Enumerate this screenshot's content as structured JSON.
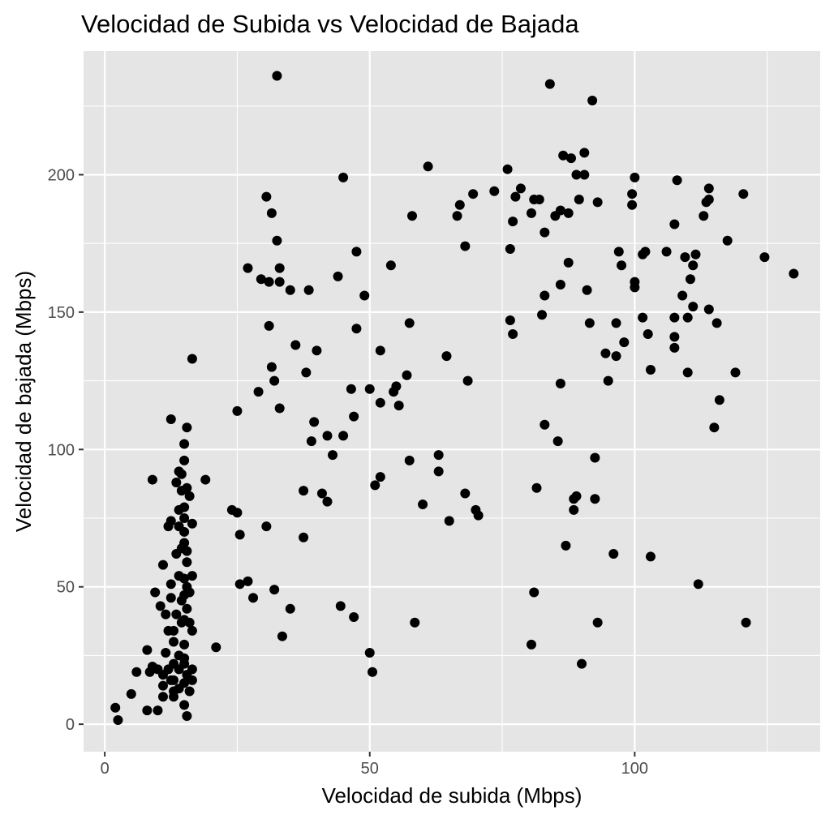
{
  "chart_data": {
    "type": "scatter",
    "title": "Velocidad de Subida vs Velocidad de Bajada",
    "xlabel": "Velocidad de subida (Mbps)",
    "ylabel": "Velocidad de bajada (Mbps)",
    "xlim": [
      -4,
      135
    ],
    "ylim": [
      -10,
      245
    ],
    "x_ticks": [
      0,
      50,
      100
    ],
    "y_ticks": [
      0,
      50,
      100,
      150,
      200
    ],
    "x_tick_labels": [
      "0",
      "50",
      "100"
    ],
    "y_tick_labels": [
      "0",
      "50",
      "100",
      "150",
      "200"
    ],
    "grid": true,
    "legend": "none",
    "colors": {
      "panel": "#e5e5e5",
      "point": "#000000"
    },
    "points": [
      [
        2,
        6
      ],
      [
        2.5,
        1.5
      ],
      [
        5,
        11
      ],
      [
        6,
        19
      ],
      [
        8,
        5
      ],
      [
        8,
        27
      ],
      [
        8.5,
        19
      ],
      [
        9,
        21
      ],
      [
        9,
        89
      ],
      [
        9.5,
        48
      ],
      [
        10,
        5
      ],
      [
        10,
        20
      ],
      [
        10.5,
        43
      ],
      [
        11,
        10
      ],
      [
        11,
        14
      ],
      [
        11,
        18
      ],
      [
        11,
        58
      ],
      [
        11.5,
        40
      ],
      [
        12,
        72
      ],
      [
        12,
        34
      ],
      [
        12.5,
        46
      ],
      [
        12.5,
        51
      ],
      [
        12.5,
        74
      ],
      [
        12.5,
        111
      ],
      [
        13,
        12
      ],
      [
        13,
        16
      ],
      [
        13,
        22
      ],
      [
        13,
        30
      ],
      [
        13,
        34
      ],
      [
        13.5,
        40
      ],
      [
        13.5,
        62
      ],
      [
        13.5,
        88
      ],
      [
        14,
        72
      ],
      [
        14,
        78
      ],
      [
        14,
        92
      ],
      [
        14,
        54
      ],
      [
        14,
        13
      ],
      [
        14,
        20
      ],
      [
        14.5,
        37
      ],
      [
        14.5,
        45
      ],
      [
        14.5,
        64
      ],
      [
        14.5,
        85
      ],
      [
        14.5,
        91
      ],
      [
        15,
        7
      ],
      [
        15,
        15
      ],
      [
        15,
        22
      ],
      [
        15,
        24
      ],
      [
        15,
        29
      ],
      [
        15,
        38
      ],
      [
        15,
        47
      ],
      [
        15,
        53
      ],
      [
        15,
        66
      ],
      [
        15,
        70
      ],
      [
        15,
        75
      ],
      [
        15,
        79
      ],
      [
        15,
        96
      ],
      [
        15,
        102
      ],
      [
        15.5,
        3
      ],
      [
        15.5,
        108
      ],
      [
        15.5,
        86
      ],
      [
        15.5,
        63
      ],
      [
        15.5,
        50
      ],
      [
        15.5,
        42
      ],
      [
        15.5,
        18
      ],
      [
        16,
        12
      ],
      [
        16,
        37
      ],
      [
        16,
        48
      ],
      [
        16,
        83
      ],
      [
        16.5,
        133
      ],
      [
        16.5,
        73
      ],
      [
        16.5,
        54
      ],
      [
        16.5,
        34
      ],
      [
        16.5,
        20
      ],
      [
        16.5,
        16
      ],
      [
        12,
        20
      ],
      [
        11.5,
        26
      ],
      [
        12.5,
        16
      ],
      [
        13,
        10
      ],
      [
        14,
        25
      ],
      [
        15.5,
        59
      ],
      [
        19,
        89
      ],
      [
        21,
        28
      ],
      [
        24,
        78
      ],
      [
        25,
        77
      ],
      [
        25,
        114
      ],
      [
        25.5,
        69
      ],
      [
        25.5,
        51
      ],
      [
        27,
        52
      ],
      [
        27,
        166
      ],
      [
        28,
        46
      ],
      [
        29,
        121
      ],
      [
        29.5,
        162
      ],
      [
        30.5,
        192
      ],
      [
        30.5,
        72
      ],
      [
        31,
        161
      ],
      [
        31,
        145
      ],
      [
        31.5,
        186
      ],
      [
        31.5,
        130
      ],
      [
        32,
        125
      ],
      [
        32,
        49
      ],
      [
        32.5,
        176
      ],
      [
        32.5,
        236
      ],
      [
        33,
        166
      ],
      [
        33,
        161
      ],
      [
        33,
        115
      ],
      [
        33.5,
        32
      ],
      [
        35,
        158
      ],
      [
        35,
        42
      ],
      [
        36,
        138
      ],
      [
        37.5,
        85
      ],
      [
        37.5,
        68
      ],
      [
        38,
        128
      ],
      [
        38.5,
        158
      ],
      [
        39,
        103
      ],
      [
        39.5,
        110
      ],
      [
        40,
        136
      ],
      [
        41,
        84
      ],
      [
        42,
        105
      ],
      [
        42,
        81
      ],
      [
        43,
        98
      ],
      [
        44,
        163
      ],
      [
        44.5,
        43
      ],
      [
        45,
        105
      ],
      [
        45,
        199
      ],
      [
        46.5,
        122
      ],
      [
        47,
        112
      ],
      [
        47,
        39
      ],
      [
        47.5,
        172
      ],
      [
        47.5,
        144
      ],
      [
        49,
        156
      ],
      [
        50,
        122
      ],
      [
        50,
        26
      ],
      [
        50.5,
        19
      ],
      [
        51,
        87
      ],
      [
        52,
        136
      ],
      [
        52,
        90
      ],
      [
        52,
        117
      ],
      [
        54,
        167
      ],
      [
        54.5,
        121
      ],
      [
        55,
        123
      ],
      [
        55.5,
        116
      ],
      [
        57,
        127
      ],
      [
        57.5,
        146
      ],
      [
        57.5,
        96
      ],
      [
        58,
        185
      ],
      [
        58.5,
        37
      ],
      [
        60,
        80
      ],
      [
        61,
        203
      ],
      [
        63,
        98
      ],
      [
        63,
        92
      ],
      [
        64.5,
        134
      ],
      [
        65,
        74
      ],
      [
        66.5,
        185
      ],
      [
        67,
        189
      ],
      [
        68,
        174
      ],
      [
        68,
        84
      ],
      [
        68.5,
        125
      ],
      [
        69.5,
        193
      ],
      [
        70,
        78
      ],
      [
        70.5,
        76
      ],
      [
        73.5,
        194
      ],
      [
        76,
        202
      ],
      [
        76.5,
        173
      ],
      [
        76.5,
        147
      ],
      [
        77,
        142
      ],
      [
        77,
        183
      ],
      [
        77.5,
        192
      ],
      [
        78.5,
        195
      ],
      [
        80.5,
        186
      ],
      [
        80.5,
        29
      ],
      [
        81,
        48
      ],
      [
        81,
        191
      ],
      [
        81.5,
        86
      ],
      [
        82,
        191
      ],
      [
        82.5,
        149
      ],
      [
        83,
        179
      ],
      [
        83,
        109
      ],
      [
        83,
        156
      ],
      [
        84,
        233
      ],
      [
        85,
        185
      ],
      [
        85.5,
        103
      ],
      [
        86,
        187
      ],
      [
        86,
        124
      ],
      [
        86,
        160
      ],
      [
        86.5,
        207
      ],
      [
        87,
        65
      ],
      [
        87.5,
        186
      ],
      [
        87.5,
        168
      ],
      [
        88,
        206
      ],
      [
        88.5,
        78
      ],
      [
        88.5,
        82
      ],
      [
        89,
        83
      ],
      [
        89,
        200
      ],
      [
        89.5,
        191
      ],
      [
        90,
        22
      ],
      [
        90.5,
        208
      ],
      [
        90.5,
        200
      ],
      [
        91,
        158
      ],
      [
        91.5,
        146
      ],
      [
        92,
        227
      ],
      [
        92.5,
        97
      ],
      [
        92.5,
        82
      ],
      [
        93,
        190
      ],
      [
        93,
        37
      ],
      [
        94.5,
        135
      ],
      [
        95,
        125
      ],
      [
        96,
        62
      ],
      [
        96.5,
        146
      ],
      [
        96.5,
        134
      ],
      [
        97,
        172
      ],
      [
        97.5,
        167
      ],
      [
        98,
        139
      ],
      [
        99.5,
        193
      ],
      [
        99.5,
        189
      ],
      [
        100,
        161
      ],
      [
        100,
        159
      ],
      [
        100,
        199
      ],
      [
        101.5,
        171
      ],
      [
        101.5,
        148
      ],
      [
        102,
        172
      ],
      [
        102.5,
        142
      ],
      [
        103,
        129
      ],
      [
        103,
        61
      ],
      [
        106,
        172
      ],
      [
        107.5,
        182
      ],
      [
        107.5,
        148
      ],
      [
        107.5,
        141
      ],
      [
        107.5,
        137
      ],
      [
        108,
        198
      ],
      [
        109,
        156
      ],
      [
        109.5,
        170
      ],
      [
        110,
        128
      ],
      [
        110,
        148
      ],
      [
        110.5,
        162
      ],
      [
        111,
        152
      ],
      [
        111,
        167
      ],
      [
        111.5,
        171
      ],
      [
        112,
        51
      ],
      [
        113,
        185
      ],
      [
        113.5,
        190
      ],
      [
        114,
        195
      ],
      [
        114,
        191
      ],
      [
        114,
        151
      ],
      [
        115,
        108
      ],
      [
        115.5,
        146
      ],
      [
        116,
        118
      ],
      [
        117.5,
        176
      ],
      [
        119,
        128
      ],
      [
        120.5,
        193
      ],
      [
        121,
        37
      ],
      [
        124.5,
        170
      ],
      [
        130,
        164
      ]
    ]
  }
}
